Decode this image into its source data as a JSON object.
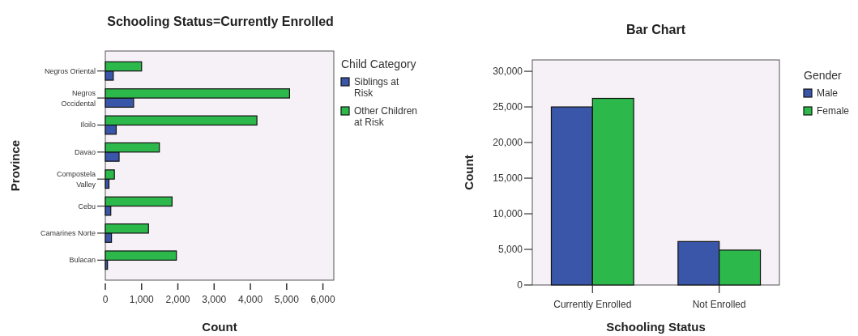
{
  "chart_data": [
    {
      "type": "bar",
      "orientation": "horizontal",
      "title": "Schooling Status=Currently Enrolled",
      "xlabel": "Count",
      "ylabel": "Province",
      "legend_title": "Child Category",
      "legend": "top right",
      "grid": false,
      "categories": [
        "Negros Oriental",
        "Negros Occidental",
        "Iloilo",
        "Davao",
        "Compostela Valley",
        "Cebu",
        "Camarines Norte",
        "Bulacan"
      ],
      "xlim": [
        0,
        6300
      ],
      "xticks": [
        {
          "value": 0,
          "label": "0"
        },
        {
          "value": 1000,
          "label": "1,000"
        },
        {
          "value": 2000,
          "label": "2,000"
        },
        {
          "value": 3000,
          "label": "3,000"
        },
        {
          "value": 4000,
          "label": "4,000"
        },
        {
          "value": 5000,
          "label": "5,000"
        },
        {
          "value": 6000,
          "label": "6,000"
        }
      ],
      "series": [
        {
          "name": "Siblings at Risk",
          "color": "#3a56a8",
          "values": [
            220,
            780,
            300,
            380,
            100,
            150,
            170,
            60
          ]
        },
        {
          "name": "Other Children at Risk",
          "color": "#2db84b",
          "values": [
            1000,
            5080,
            4180,
            1490,
            250,
            1840,
            1190,
            1960
          ]
        }
      ]
    },
    {
      "type": "bar",
      "title": "Bar Chart",
      "xlabel": "Schooling Status",
      "ylabel": "Count",
      "legend_title": "Gender",
      "legend": "top right",
      "grid": false,
      "categories": [
        "Currently Enrolled",
        "Not Enrolled"
      ],
      "ylim": [
        0,
        31600
      ],
      "yticks": [
        {
          "value": 0,
          "label": "0"
        },
        {
          "value": 5000,
          "label": "5,000"
        },
        {
          "value": 10000,
          "label": "10,000"
        },
        {
          "value": 15000,
          "label": "15,000"
        },
        {
          "value": 20000,
          "label": "20,000"
        },
        {
          "value": 25000,
          "label": "25,000"
        },
        {
          "value": 30000,
          "label": "30,000"
        }
      ],
      "series": [
        {
          "name": "Male",
          "color": "#3a56a8",
          "values": [
            25000,
            6100
          ]
        },
        {
          "name": "Female",
          "color": "#2db84b",
          "values": [
            26200,
            4900
          ]
        }
      ]
    }
  ]
}
